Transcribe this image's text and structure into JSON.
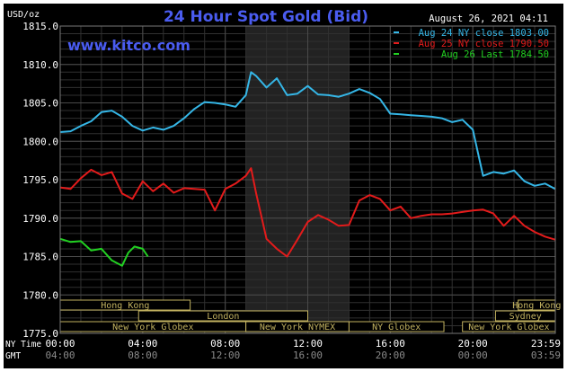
{
  "chart_data": {
    "type": "line",
    "title": "24 Hour Spot Gold (Bid)",
    "ylabel": "USD/oz",
    "date_label": "August 26, 2021 04:11",
    "watermark": "www.kitco.com",
    "ylim": [
      1775.0,
      1815.0
    ],
    "y_ticks": [
      "1815.0",
      "1810.0",
      "1805.0",
      "1800.0",
      "1795.0",
      "1790.0",
      "1785.0",
      "1780.0",
      "1775.0"
    ],
    "xlim_hours_ny": [
      0,
      24
    ],
    "x_axis_rows": [
      {
        "label": "NY Time",
        "ticks": [
          "00:00",
          "04:00",
          "08:00",
          "12:00",
          "16:00",
          "20:00",
          "23:59"
        ]
      },
      {
        "label": "GMT",
        "ticks": [
          "04:00",
          "08:00",
          "12:00",
          "16:00",
          "20:00",
          "00:00",
          "03:59"
        ]
      }
    ],
    "legend": [
      {
        "text": "Aug 24 NY close 1803.00",
        "color": "#35b6e6"
      },
      {
        "text": "Aug 25 NY close 1790.50",
        "color": "#e31b1b"
      },
      {
        "text": "Aug 26 Last 1784.50",
        "color": "#22d022"
      }
    ],
    "legend_placement": "top-right",
    "shaded_session_hours": [
      9,
      14
    ],
    "sessions": [
      {
        "name": "Hong Kong",
        "start": 0,
        "end": 6.3
      },
      {
        "name": "London",
        "start": 3.8,
        "end": 12
      },
      {
        "name": "New York Globex",
        "start": 0,
        "end": 9
      },
      {
        "name": "New York NYMEX",
        "start": 9,
        "end": 14
      },
      {
        "name": "NY Globex",
        "start": 14,
        "end": 18.6
      },
      {
        "name": "Hong Kong",
        "start": 22.2,
        "end": 24
      },
      {
        "name": "Sydney",
        "start": 21.1,
        "end": 24
      },
      {
        "name": "New York Globex",
        "start": 19.5,
        "end": 24
      }
    ],
    "series": [
      {
        "name": "Aug 24 NY close 1803.00",
        "color": "#35b6e6",
        "x": [
          0,
          0.5,
          1,
          1.5,
          2,
          2.5,
          3,
          3.5,
          4,
          4.5,
          5,
          5.5,
          6,
          6.5,
          7,
          7.5,
          8,
          8.5,
          9,
          9.25,
          9.5,
          10,
          10.5,
          11,
          11.5,
          12,
          12.5,
          13,
          13.5,
          14,
          14.5,
          15,
          15.5,
          16,
          16.5,
          17,
          17.5,
          18,
          18.5,
          19,
          19.5,
          20,
          20.5,
          21,
          21.5,
          22,
          22.5,
          23,
          23.5,
          23.99
        ],
        "y": [
          1801.2,
          1801.3,
          1802.0,
          1802.6,
          1803.8,
          1804.0,
          1803.2,
          1802.0,
          1801.4,
          1801.8,
          1801.5,
          1802.0,
          1803.0,
          1804.2,
          1805.1,
          1805.0,
          1804.8,
          1804.5,
          1806.0,
          1809.0,
          1808.5,
          1807.0,
          1808.2,
          1806.0,
          1806.2,
          1807.2,
          1806.1,
          1806.0,
          1805.8,
          1806.2,
          1806.8,
          1806.3,
          1805.5,
          1803.6,
          1803.5,
          1803.4,
          1803.3,
          1803.2,
          1803.0,
          1802.5,
          1802.8,
          1801.5,
          1795.5,
          1796.0,
          1795.8,
          1796.2,
          1794.8,
          1794.2,
          1794.5,
          1793.8
        ]
      },
      {
        "name": "Aug 25 NY close 1790.50",
        "color": "#e31b1b",
        "x": [
          0,
          0.5,
          1,
          1.5,
          2,
          2.5,
          3,
          3.5,
          4,
          4.5,
          5,
          5.5,
          6,
          6.5,
          7,
          7.5,
          8,
          8.5,
          9,
          9.25,
          9.5,
          10,
          10.5,
          11,
          11.5,
          12,
          12.5,
          13,
          13.5,
          14,
          14.5,
          15,
          15.5,
          16,
          16.5,
          17,
          17.5,
          18,
          18.5,
          19,
          19.5,
          20,
          20.5,
          21,
          21.5,
          22,
          22.5,
          23,
          23.5,
          23.99
        ],
        "y": [
          1794.0,
          1793.8,
          1795.2,
          1796.3,
          1795.6,
          1796.0,
          1793.2,
          1792.5,
          1794.8,
          1793.5,
          1794.5,
          1793.3,
          1793.9,
          1793.8,
          1793.7,
          1791.0,
          1793.8,
          1794.5,
          1795.5,
          1796.5,
          1793.2,
          1787.3,
          1786.0,
          1785.0,
          1787.2,
          1789.5,
          1790.4,
          1789.8,
          1789.0,
          1789.1,
          1792.3,
          1793.0,
          1792.5,
          1791.0,
          1791.5,
          1790.0,
          1790.3,
          1790.5,
          1790.5,
          1790.6,
          1790.8,
          1791.0,
          1791.1,
          1790.6,
          1789.0,
          1790.3,
          1789.0,
          1788.2,
          1787.6,
          1787.2
        ]
      },
      {
        "name": "Aug 26 Last 1784.50",
        "color": "#22d022",
        "x": [
          0,
          0.5,
          1,
          1.5,
          2,
          2.5,
          3,
          3.3,
          3.6,
          4,
          4.25
        ],
        "y": [
          1787.3,
          1786.9,
          1787.0,
          1785.8,
          1786.0,
          1784.5,
          1783.8,
          1785.5,
          1786.3,
          1786.0,
          1785.0
        ]
      }
    ]
  }
}
